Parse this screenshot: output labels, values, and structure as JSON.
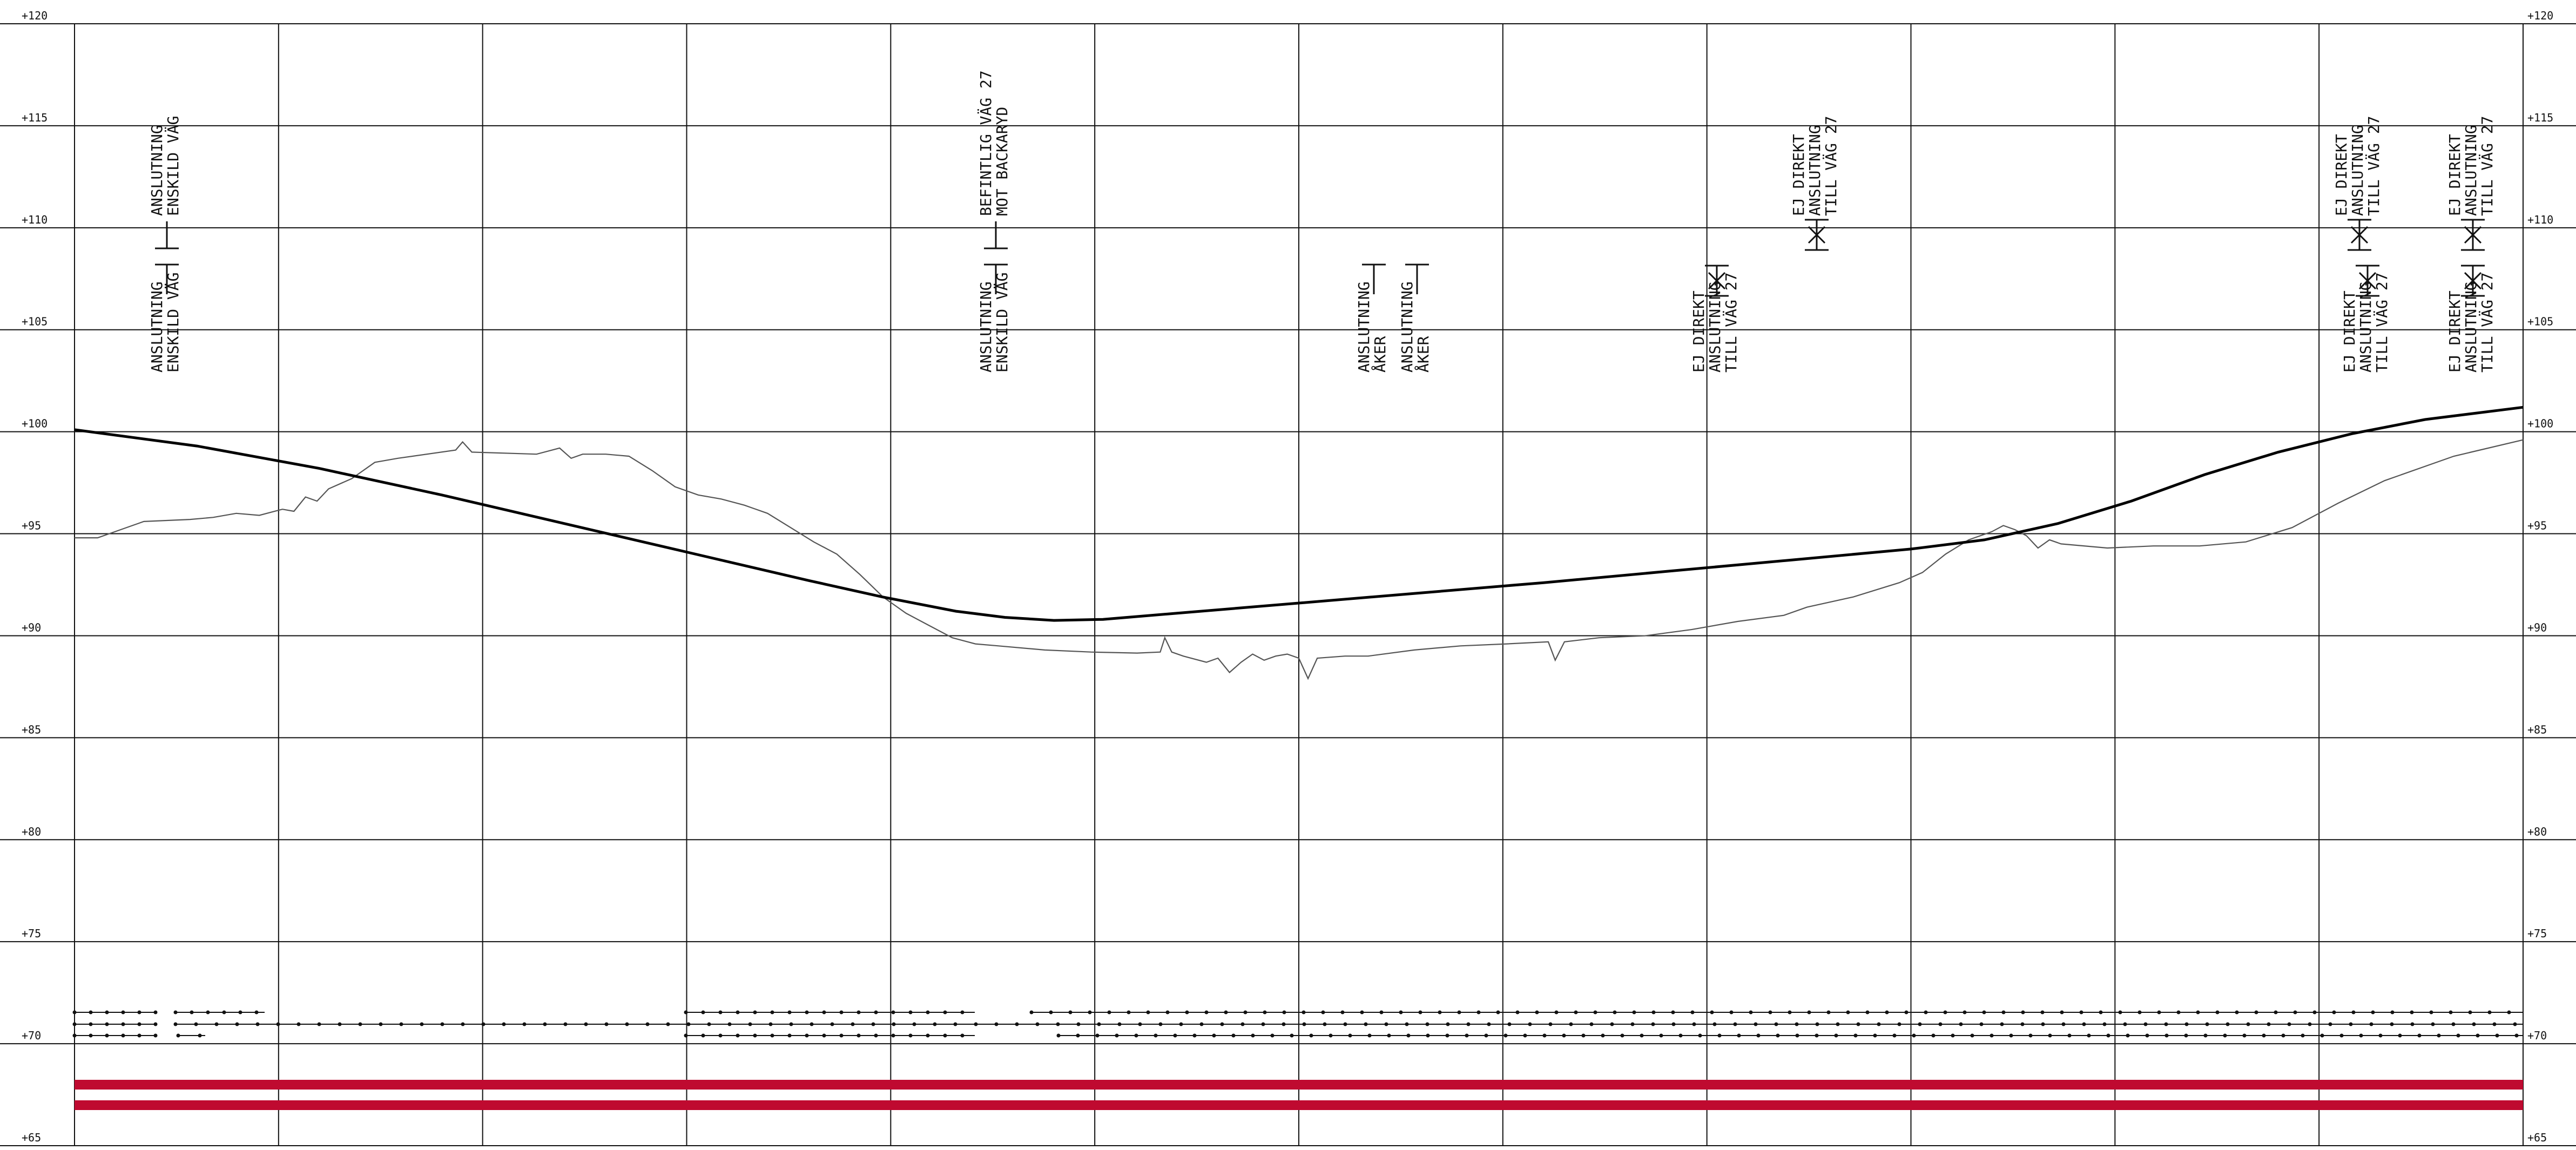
{
  "profile": {
    "elevation_range": [
      65,
      120
    ],
    "elevation_step": 5,
    "elevation_labels": [
      "+120",
      "+115",
      "+110",
      "+105",
      "+100",
      "+95",
      "+90",
      "+85",
      "+80",
      "+75",
      "+70",
      "+65"
    ],
    "vertical_divisions": 12,
    "colors": {
      "grid": "#111111",
      "ground_line": "#555555",
      "road_line": "#000000",
      "band": "#bf0a30"
    }
  },
  "annotations": [
    {
      "id": "a1",
      "lines": [
        "ANSLUTNING",
        "ENSKILD VÄG"
      ],
      "symbol": "tee-bar"
    },
    {
      "id": "a2",
      "lines": [
        "ANSLUTNING",
        "ENSKILD VÄG"
      ],
      "symbol": "tee-bar"
    },
    {
      "id": "a3",
      "lines": [
        "BEFINTLIG VÄG 27",
        "MOT BACKARYD"
      ],
      "symbol": "tee-bar"
    },
    {
      "id": "a4",
      "lines": [
        "ANSLUTNING",
        "ENSKILD VÄG"
      ],
      "symbol": "tee-bar"
    },
    {
      "id": "a5",
      "lines": [
        "ANSLUTNING",
        "ÅKER"
      ],
      "symbol": "tee-bar"
    },
    {
      "id": "a6",
      "lines": [
        "ANSLUTNING",
        "ÅKER"
      ],
      "symbol": "tee-bar"
    },
    {
      "id": "a7",
      "lines": [
        "EJ DIREKT",
        "ANSLUTNING",
        "TILL VÄG 27"
      ],
      "symbol": "cross-bar"
    },
    {
      "id": "a8",
      "lines": [
        "EJ DIREKT",
        "ANSLUTNING",
        "TILL VÄG 27"
      ],
      "symbol": "cross-bar"
    },
    {
      "id": "a9",
      "lines": [
        "EJ DIREKT",
        "ANSLUTNING",
        "TILL VÄG 27"
      ],
      "symbol": "cross-bar"
    },
    {
      "id": "a10",
      "lines": [
        "EJ DIREKT",
        "ANSLUTNING",
        "TILL VÄG 27"
      ],
      "symbol": "cross-bar"
    },
    {
      "id": "a11",
      "lines": [
        "EJ DIREKT",
        "ANSLUTNING",
        "TILL VÄG 27"
      ],
      "symbol": "cross-bar"
    },
    {
      "id": "a12",
      "lines": [
        "EJ DIREKT",
        "ANSLUTNING",
        "TILL VÄG 27"
      ],
      "symbol": "cross-bar"
    }
  ]
}
